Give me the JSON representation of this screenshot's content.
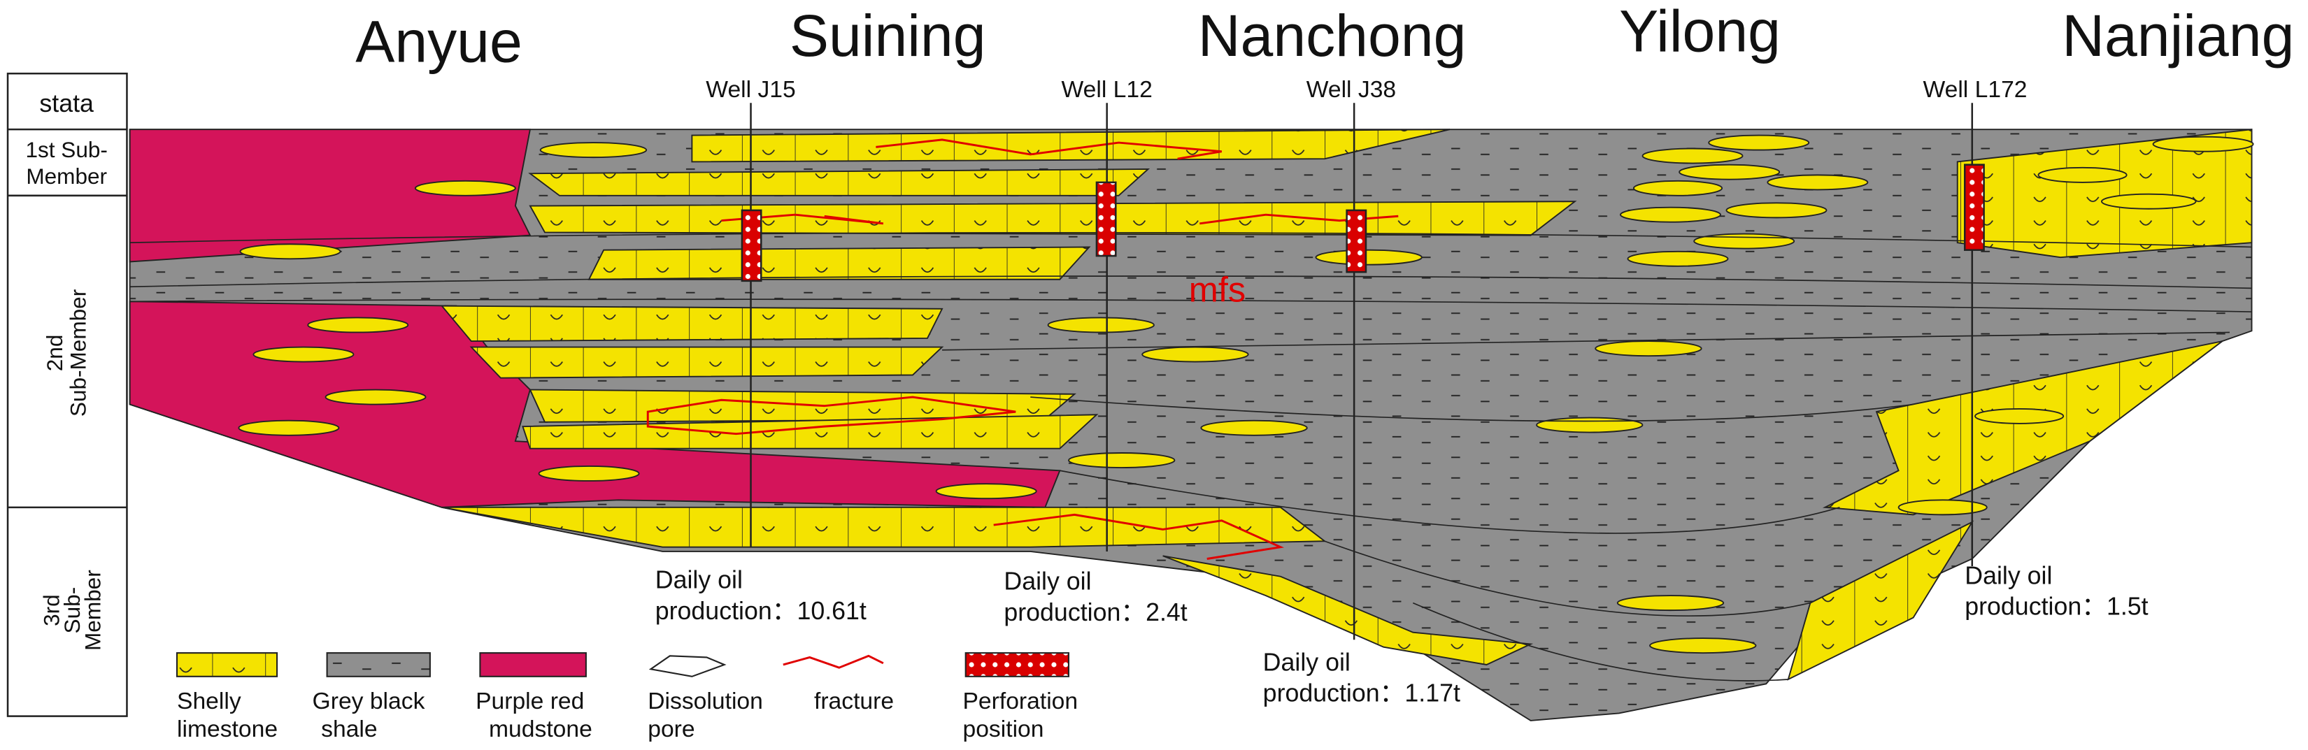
{
  "locations": [
    "Anyue",
    "Suining",
    "Nanchong",
    "Yilong",
    "Nanjiang"
  ],
  "strata": {
    "header": "stata",
    "members": [
      [
        "1st Sub-",
        "Member"
      ],
      [
        "2nd",
        "Sub-Member"
      ],
      [
        "3rd",
        "Sub-",
        "Member"
      ]
    ]
  },
  "wells": [
    "Well J15",
    "Well L12",
    "Well J38",
    "Well L172"
  ],
  "productions": [
    [
      "Daily oil",
      "production：10.61t"
    ],
    [
      "Daily oil",
      "production：2.4t"
    ],
    [
      "Daily oil",
      "production：1.17t"
    ],
    [
      "Daily oil",
      "production：1.5t"
    ]
  ],
  "mfs": "mfs",
  "legend": [
    [
      "Shelly",
      "limestone"
    ],
    [
      "Grey black",
      "shale"
    ],
    [
      "Purple red",
      "mudstone"
    ],
    [
      "Dissolution",
      "pore"
    ],
    [
      "fracture"
    ],
    [
      "Perforation",
      "position"
    ]
  ]
}
